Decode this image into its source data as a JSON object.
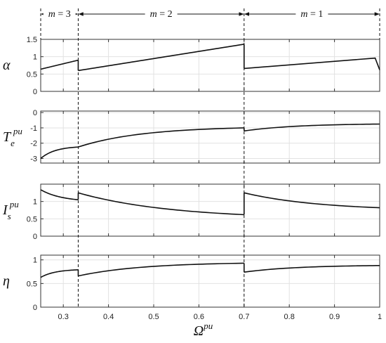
{
  "chart_data": {
    "type": "line",
    "x_range": [
      0.25,
      1.0
    ],
    "x_ticks": [
      "0.3",
      "0.4",
      "0.5",
      "0.6",
      "0.7",
      "0.8",
      "0.9",
      "1"
    ],
    "x_tick_values": [
      0.3,
      0.4,
      0.5,
      0.6,
      0.7,
      0.8,
      0.9,
      1.0
    ],
    "xlabel": "Ω",
    "xlabel_sup": "pu",
    "grid": true,
    "boundaries": [
      0.333,
      0.7
    ],
    "regions": [
      {
        "var": "m",
        "eq": " = ",
        "value": "3",
        "x_start": 0.25,
        "x_end": 0.333
      },
      {
        "var": "m",
        "eq": " = ",
        "value": "2",
        "x_start": 0.333,
        "x_end": 0.7
      },
      {
        "var": "m",
        "eq": " = ",
        "value": "1",
        "x_start": 0.7,
        "x_end": 1.0
      }
    ],
    "panels": [
      {
        "ylabel": "α",
        "ylabel_sub": "",
        "ylabel_sup": "",
        "ylim": [
          0,
          1.5
        ],
        "y_ticks": [
          "0",
          "0.5",
          "1",
          "1.5"
        ],
        "y_tick_values": [
          0,
          0.5,
          1,
          1.5
        ],
        "series": [
          {
            "x": [
              0.25,
              0.333
            ],
            "y": [
              0.64,
              0.9
            ]
          },
          {
            "x": [
              0.333,
              0.7
            ],
            "y": [
              0.6,
              1.36
            ]
          },
          {
            "x": [
              0.7,
              0.99,
              1.0
            ],
            "y": [
              0.66,
              0.96,
              0.62
            ]
          }
        ]
      },
      {
        "ylabel": "T",
        "ylabel_sub": "e",
        "ylabel_sup": "pu",
        "ylim": [
          -3.3,
          0.1
        ],
        "y_ticks": [
          "0",
          "-1",
          "-2",
          "-3"
        ],
        "y_tick_values": [
          0,
          -1,
          -2,
          -3
        ],
        "series": [
          {
            "x": [
              0.25,
              0.333
            ],
            "y": [
              -3.0,
              -2.25
            ]
          },
          {
            "x": [
              0.333,
              0.7
            ],
            "y": [
              -2.25,
              -1.0
            ]
          },
          {
            "x": [
              0.7,
              1.0
            ],
            "y": [
              -1.2,
              -0.75
            ]
          }
        ]
      },
      {
        "ylabel": "I",
        "ylabel_sub": "s",
        "ylabel_sup": "pu",
        "ylim": [
          0,
          1.5
        ],
        "y_ticks": [
          "0",
          "0.5",
          "1"
        ],
        "y_tick_values": [
          0,
          0.5,
          1
        ],
        "series": [
          {
            "x": [
              0.25,
              0.333
            ],
            "y": [
              1.34,
              1.05
            ]
          },
          {
            "x": [
              0.333,
              0.7
            ],
            "y": [
              1.25,
              0.62
            ]
          },
          {
            "x": [
              0.7,
              1.0
            ],
            "y": [
              1.25,
              0.82
            ]
          }
        ]
      },
      {
        "ylabel": "η",
        "ylabel_sub": "",
        "ylabel_sup": "",
        "ylim": [
          0,
          1.1
        ],
        "y_ticks": [
          "0",
          "0.5",
          "1"
        ],
        "y_tick_values": [
          0,
          0.5,
          1
        ],
        "series": [
          {
            "x": [
              0.25,
              0.333
            ],
            "y": [
              0.63,
              0.79
            ]
          },
          {
            "x": [
              0.333,
              0.7
            ],
            "y": [
              0.66,
              0.93
            ]
          },
          {
            "x": [
              0.7,
              1.0
            ],
            "y": [
              0.74,
              0.88
            ]
          }
        ]
      }
    ]
  }
}
